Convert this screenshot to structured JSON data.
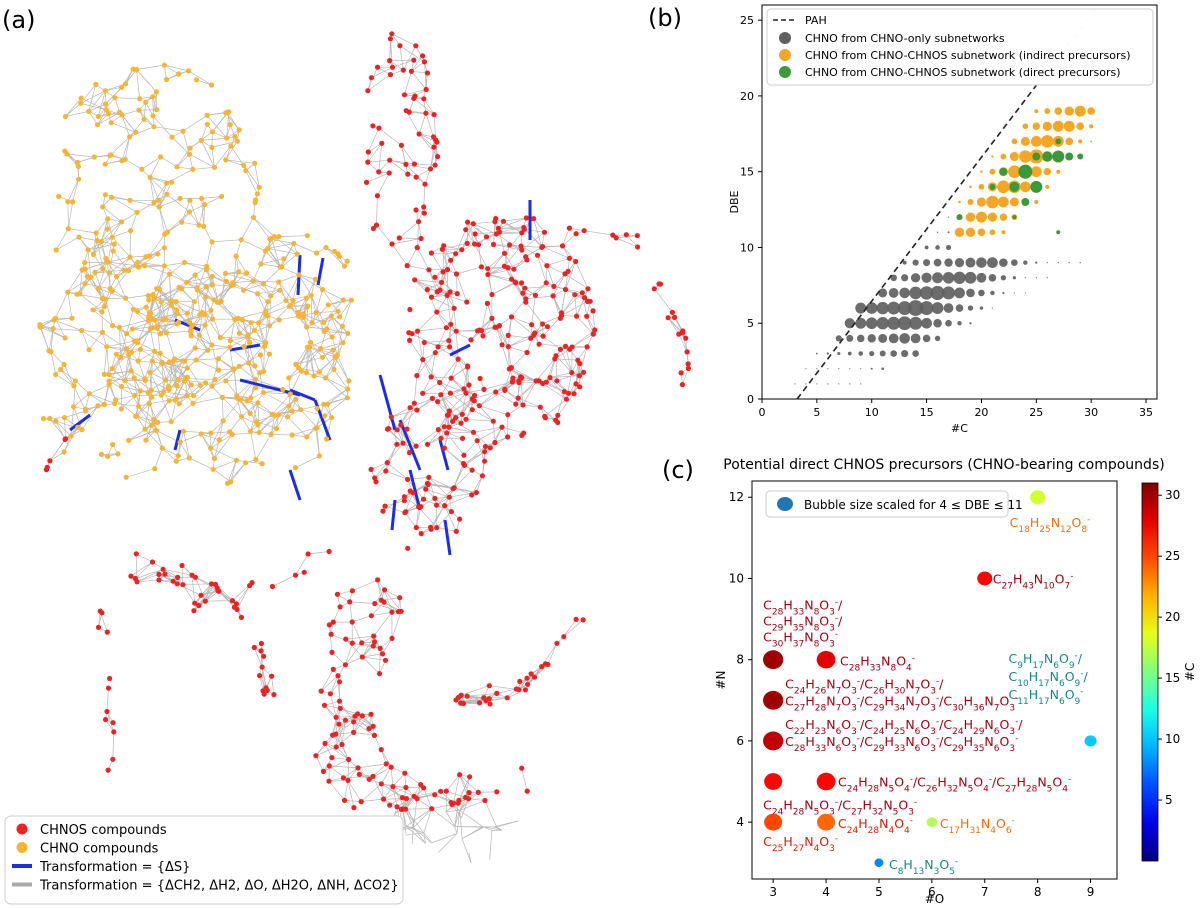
{
  "panels": {
    "a": "(a)",
    "b": "(b)",
    "c": "(c)"
  },
  "network": {
    "legend": [
      {
        "label": "CHNOS compounds",
        "color": "#ee2222",
        "kind": "dot"
      },
      {
        "label": "CHNO compounds",
        "color": "#f9b430",
        "kind": "dot"
      },
      {
        "label": "Transformation = {ΔS}",
        "color": "#1a2ee6",
        "kind": "line"
      },
      {
        "label": "Transformation = {ΔCH2, ΔH2, ΔO, ΔH2O, ΔNH, ΔCO2}",
        "color": "#aaaaaa",
        "kind": "line"
      }
    ],
    "colors": {
      "chnos": "#ee2222",
      "chno": "#f9b430",
      "s_edge": "#1a2ee6",
      "edge": "#aaaaaa"
    }
  },
  "chart_data": [
    {
      "id": "b",
      "type": "scatter",
      "title": "",
      "xlabel": "#C",
      "ylabel": "DBE",
      "xlim": [
        0,
        36
      ],
      "ylim": [
        0,
        26
      ],
      "xticks": [
        "0",
        "5",
        "10",
        "15",
        "20",
        "25",
        "30",
        "35"
      ],
      "yticks": [
        "0",
        "5",
        "10",
        "15",
        "20",
        "25"
      ],
      "legend_position": "top-left",
      "pah_line": {
        "label": "PAH",
        "x": [
          3.2,
          30.5
        ],
        "y": [
          0,
          25.8
        ]
      },
      "series": [
        {
          "name": "CHNO from CHNO-only subnetworks",
          "color": "#606060"
        },
        {
          "name": "CHNO from CHNO-CHNOS subnetwork (indirect precursors)",
          "color": "#f5a623"
        },
        {
          "name": "CHNO from CHNO-CHNOS subnetwork (direct precursors)",
          "color": "#3a9a3a"
        }
      ]
    },
    {
      "id": "c",
      "type": "scatter",
      "title": "Potential direct CHNOS precursors (CHNO-bearing compounds)",
      "xlabel": "#O",
      "ylabel": "#N",
      "xlim": [
        2.6,
        9.5
      ],
      "ylim": [
        2.6,
        12.4
      ],
      "xticks": [
        "3",
        "4",
        "5",
        "6",
        "7",
        "8",
        "9"
      ],
      "yticks": [
        "4",
        "6",
        "8",
        "10",
        "12"
      ],
      "colorbar": {
        "label": "#C",
        "ticks": [
          "5",
          "10",
          "15",
          "20",
          "25",
          "30"
        ],
        "range": [
          0,
          31
        ]
      },
      "legend": "Bubble size scaled for 4 ≤ DBE ≤ 11",
      "points": [
        {
          "o": 8,
          "n": 12,
          "c": 18,
          "size": 1.0,
          "labels": [
            "C18H25N12O8-"
          ]
        },
        {
          "o": 7,
          "n": 10,
          "c": 27,
          "size": 1.0,
          "labels": [
            "C27H43N10O7-"
          ]
        },
        {
          "o": 3,
          "n": 8,
          "c": 30,
          "size": 1.35,
          "labels": [
            "C28H33N8O3-/",
            "C29H35N8O3-/",
            "C30H37N8O3-"
          ]
        },
        {
          "o": 4,
          "n": 8,
          "c": 28,
          "size": 1.25,
          "labels": [
            "C28H33N8O4-"
          ]
        },
        {
          "o": 9,
          "n": 6,
          "c": 10,
          "size": 0.8,
          "labels": [
            "C9H17N6O9-/",
            "C10H17N6O9-/",
            "C11H17N6O9-"
          ]
        },
        {
          "o": 3,
          "n": 7,
          "c": 30,
          "size": 1.35,
          "labels": [
            "C24H26N7O3-/C26H30N7O3-/",
            "C27H28N7O3-/C29H34N7O3-/C30H36N7O3-"
          ]
        },
        {
          "o": 3,
          "n": 6,
          "c": 29,
          "size": 1.35,
          "labels": [
            "C22H23N6O3-/C24H25N6O3-/C24H29N6O3-/",
            "C28H33N6O3-/C29H33N6O3-/C29H35N6O3-"
          ]
        },
        {
          "o": 3,
          "n": 5,
          "c": 27,
          "size": 1.2,
          "labels": [
            "C24H28N5O3-/C27H32N5O3-"
          ]
        },
        {
          "o": 4,
          "n": 5,
          "c": 27,
          "size": 1.25,
          "labels": [
            "C24H28N5O4-/C26H32N5O4-/C27H28N5O4-"
          ]
        },
        {
          "o": 3,
          "n": 4,
          "c": 25,
          "size": 1.2,
          "labels": [
            "C25H27N4O3-"
          ]
        },
        {
          "o": 4,
          "n": 4,
          "c": 24,
          "size": 1.2,
          "labels": [
            "C24H28N4O4-"
          ]
        },
        {
          "o": 6,
          "n": 4,
          "c": 17,
          "size": 0.7,
          "labels": [
            "C17H31N4O6-"
          ]
        },
        {
          "o": 5,
          "n": 3,
          "c": 8,
          "size": 0.6,
          "labels": [
            "C8H13N3O5-"
          ]
        }
      ]
    }
  ]
}
